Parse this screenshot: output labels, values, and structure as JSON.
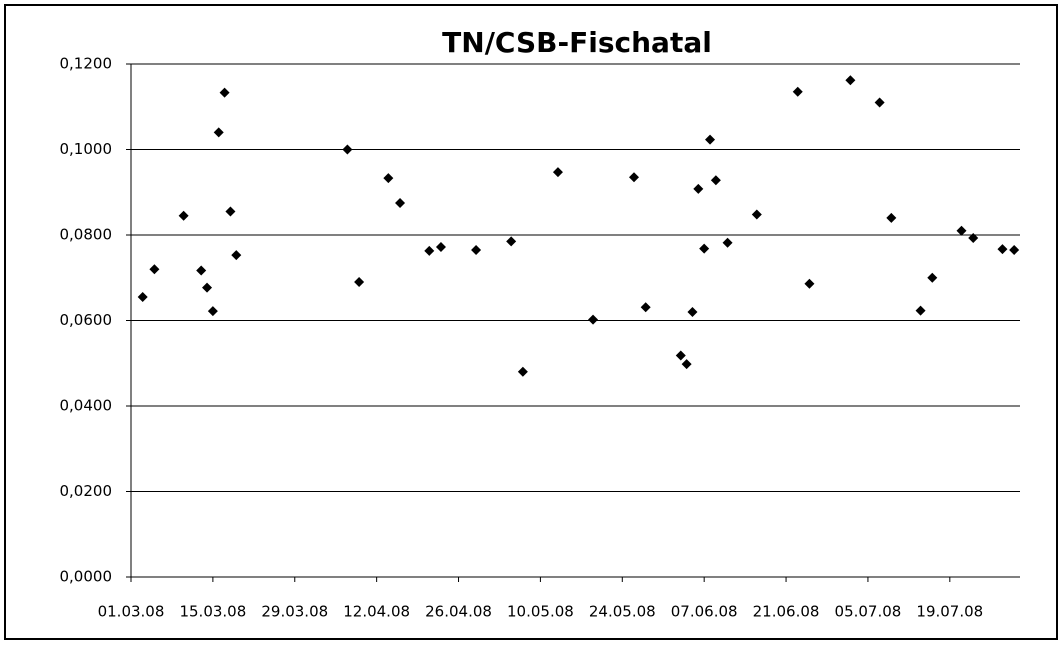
{
  "chart_data": {
    "type": "scatter",
    "title": "TN/CSB-Fischatal",
    "color": "#000000",
    "marker": "diamond",
    "grid": true,
    "x": [
      39510,
      39512,
      39517,
      39520,
      39521,
      39522,
      39523,
      39524,
      39525,
      39526,
      39545,
      39547,
      39552,
      39554,
      39559,
      39561,
      39567,
      39573,
      39575,
      39581,
      39587,
      39594,
      39596,
      39602,
      39603,
      39604,
      39605,
      39606,
      39607,
      39608,
      39610,
      39615,
      39622,
      39624,
      39631,
      39636,
      39638,
      39643,
      39645,
      39650,
      39652,
      39657,
      39659
    ],
    "y": [
      0.0655,
      0.072,
      0.0845,
      0.0717,
      0.0677,
      0.0622,
      0.104,
      0.1133,
      0.0855,
      0.0753,
      0.1,
      0.069,
      0.0933,
      0.0875,
      0.0763,
      0.0772,
      0.0765,
      0.0785,
      0.048,
      0.0947,
      0.0602,
      0.0935,
      0.0631,
      0.0518,
      0.0498,
      0.062,
      0.0908,
      0.0768,
      0.1023,
      0.0928,
      0.0782,
      0.0848,
      0.1135,
      0.0686,
      0.1162,
      0.111,
      0.084,
      0.0623,
      0.07,
      0.081,
      0.0793,
      0.0767,
      0.0765
    ],
    "xlim": [
      39508,
      39660
    ],
    "xticks": [
      {
        "value": 39508,
        "label": "01.03.08"
      },
      {
        "value": 39522,
        "label": "15.03.08"
      },
      {
        "value": 39536,
        "label": "29.03.08"
      },
      {
        "value": 39550,
        "label": "12.04.08"
      },
      {
        "value": 39564,
        "label": "26.04.08"
      },
      {
        "value": 39578,
        "label": "10.05.08"
      },
      {
        "value": 39592,
        "label": "24.05.08"
      },
      {
        "value": 39606,
        "label": "07.06.08"
      },
      {
        "value": 39620,
        "label": "21.06.08"
      },
      {
        "value": 39634,
        "label": "05.07.08"
      },
      {
        "value": 39648,
        "label": "19.07.08"
      }
    ],
    "ylim": [
      0,
      0.12
    ],
    "yticks": [
      {
        "value": 0,
        "label": "0,0000"
      },
      {
        "value": 0.02,
        "label": "0,0200"
      },
      {
        "value": 0.04,
        "label": "0,0400"
      },
      {
        "value": 0.06,
        "label": "0,0600"
      },
      {
        "value": 0.08,
        "label": "0,0800"
      },
      {
        "value": 0.1,
        "label": "0,1000"
      },
      {
        "value": 0.12,
        "label": "0,1200"
      }
    ]
  }
}
